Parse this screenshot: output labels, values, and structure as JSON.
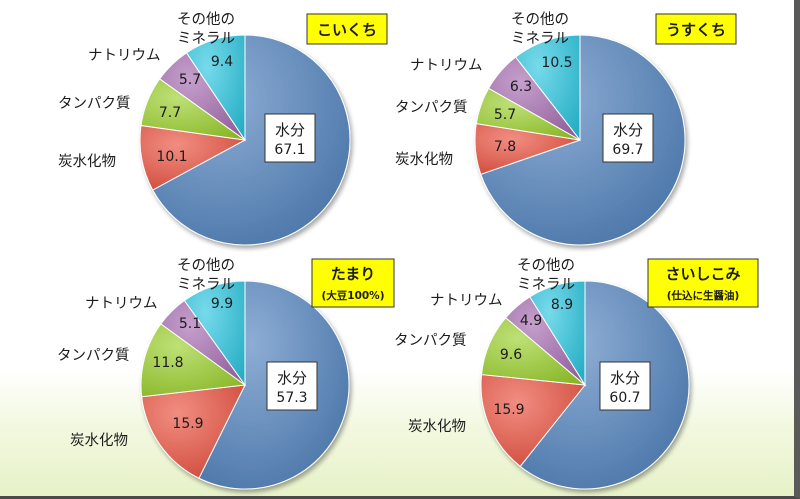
{
  "colors": {
    "水分": "#4f81bd",
    "炭水化物": "#e9503d",
    "タンパク質": "#9bcf2c",
    "ナトリウム": "#a56bb0",
    "その他のミネラル": "#2cc6e0",
    "title_box": "#ffff00"
  },
  "chart_data": [
    {
      "type": "pie",
      "title": "こいくち",
      "subtitle": "",
      "slices": [
        {
          "label": "水分",
          "value": 67.1,
          "value_text": "67.1"
        },
        {
          "label": "炭水化物",
          "value": 10.1,
          "value_text": "10.1"
        },
        {
          "label": "タンパク質",
          "value": 7.7,
          "value_text": "7.7"
        },
        {
          "label": "ナトリウム",
          "value": 5.7,
          "value_text": "5.7"
        },
        {
          "label": "その他のミネラル",
          "value": 9.4,
          "value_text": "9.4"
        }
      ]
    },
    {
      "type": "pie",
      "title": "うすくち",
      "subtitle": "",
      "slices": [
        {
          "label": "水分",
          "value": 69.7,
          "value_text": "69.7"
        },
        {
          "label": "炭水化物",
          "value": 7.8,
          "value_text": "7.8"
        },
        {
          "label": "タンパク質",
          "value": 5.7,
          "value_text": "5.7"
        },
        {
          "label": "ナトリウム",
          "value": 6.3,
          "value_text": "6.3"
        },
        {
          "label": "その他のミネラル",
          "value": 10.5,
          "value_text": "10.5"
        }
      ]
    },
    {
      "type": "pie",
      "title": "たまり",
      "subtitle": "(大豆100%)",
      "slices": [
        {
          "label": "水分",
          "value": 57.3,
          "value_text": "57.3"
        },
        {
          "label": "炭水化物",
          "value": 15.9,
          "value_text": "15.9"
        },
        {
          "label": "タンパク質",
          "value": 11.8,
          "value_text": "11.8"
        },
        {
          "label": "ナトリウム",
          "value": 5.1,
          "value_text": "5.1"
        },
        {
          "label": "その他のミネラル",
          "value": 9.9,
          "value_text": "9.9"
        }
      ]
    },
    {
      "type": "pie",
      "title": "さいしこみ",
      "subtitle": "(仕込に生醤油)",
      "slices": [
        {
          "label": "水分",
          "value": 60.7,
          "value_text": "60.7"
        },
        {
          "label": "炭水化物",
          "value": 15.9,
          "value_text": "15.9"
        },
        {
          "label": "タンパク質",
          "value": 9.6,
          "value_text": "9.6"
        },
        {
          "label": "ナトリウム",
          "value": 4.9,
          "value_text": "4.9"
        },
        {
          "label": "その他のミネラル",
          "value": 8.9,
          "value_text": "8.9"
        }
      ]
    }
  ],
  "category_labels": {
    "水分": "水分",
    "炭水化物": "炭水化物",
    "タンパク質": "タンパク質",
    "ナトリウム": "ナトリウム",
    "その他のミネラル_line1": "その他の",
    "その他のミネラル_line2": "ミネラル"
  }
}
